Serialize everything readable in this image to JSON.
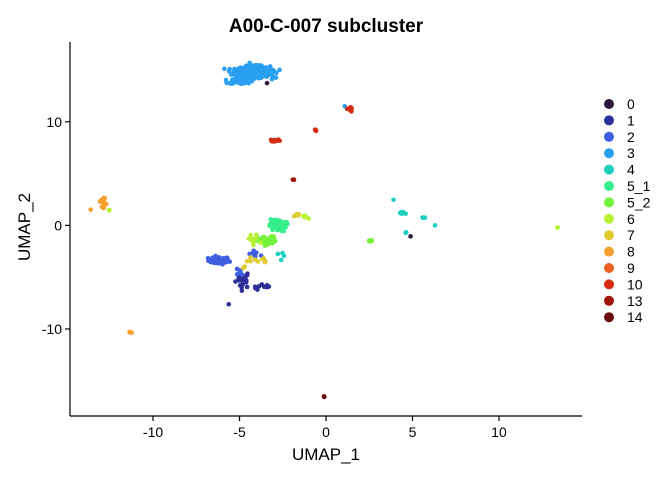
{
  "chart_data": {
    "type": "scatter",
    "title": "A00-C-007 subcluster",
    "xlabel": "UMAP_1",
    "ylabel": "UMAP_2",
    "xlim": [
      -14.8,
      14.8
    ],
    "ylim": [
      -18.4,
      17.7
    ],
    "xticks": [
      -10,
      -5,
      0,
      5,
      10
    ],
    "yticks": [
      -10,
      0,
      10
    ],
    "xtick_labels": [
      "-10",
      "-5",
      "0",
      "5",
      "10"
    ],
    "ytick_labels": [
      "-10",
      "0",
      "10"
    ],
    "grid": false,
    "legend_position": "right",
    "series": [
      {
        "name": "0",
        "color": "#2d1a3b",
        "clusters": [
          {
            "x": -3.4,
            "y": 13.7,
            "n": 1,
            "sx": 0.05,
            "sy": 0.05
          },
          {
            "x": 4.9,
            "y": -1.1,
            "n": 1,
            "sx": 0.05,
            "sy": 0.05
          }
        ]
      },
      {
        "name": "1",
        "color": "#2f2f99",
        "clusters": [
          {
            "x": -4.8,
            "y": -5.2,
            "n": 22,
            "sx": 0.35,
            "sy": 0.7
          },
          {
            "x": -3.6,
            "y": -6.0,
            "n": 10,
            "sx": 0.5,
            "sy": 0.25
          },
          {
            "x": -5.6,
            "y": -7.6,
            "n": 1,
            "sx": 0.05,
            "sy": 0.05
          }
        ]
      },
      {
        "name": "2",
        "color": "#3f5fe0",
        "clusters": [
          {
            "x": -6.2,
            "y": -3.4,
            "n": 55,
            "sx": 0.5,
            "sy": 0.3
          },
          {
            "x": -4.0,
            "y": -2.8,
            "n": 8,
            "sx": 0.4,
            "sy": 0.3
          },
          {
            "x": -5.0,
            "y": -4.6,
            "n": 6,
            "sx": 0.2,
            "sy": 0.3
          }
        ]
      },
      {
        "name": "3",
        "color": "#2a9ef0",
        "clusters": [
          {
            "x": -4.2,
            "y": 14.8,
            "n": 600,
            "sx": 0.8,
            "sy": 0.45
          },
          {
            "x": -5.0,
            "y": 13.9,
            "n": 40,
            "sx": 0.5,
            "sy": 0.2
          },
          {
            "x": 1.1,
            "y": 11.5,
            "n": 1,
            "sx": 0.05,
            "sy": 0.05
          }
        ]
      },
      {
        "name": "4",
        "color": "#1ecfc0",
        "clusters": [
          {
            "x": 4.4,
            "y": 1.2,
            "n": 6,
            "sx": 0.3,
            "sy": 0.2
          },
          {
            "x": 5.6,
            "y": 0.8,
            "n": 3,
            "sx": 0.2,
            "sy": 0.1
          },
          {
            "x": 4.6,
            "y": -0.8,
            "n": 2,
            "sx": 0.1,
            "sy": 0.1
          },
          {
            "x": 3.9,
            "y": 2.5,
            "n": 1,
            "sx": 0.05,
            "sy": 0.05
          },
          {
            "x": 6.3,
            "y": 0.0,
            "n": 1,
            "sx": 0.05,
            "sy": 0.05
          },
          {
            "x": -2.8,
            "y": -3.0,
            "n": 4,
            "sx": 0.3,
            "sy": 0.3
          }
        ]
      },
      {
        "name": "5_1",
        "color": "#35ee8c",
        "clusters": [
          {
            "x": -2.8,
            "y": 0.0,
            "n": 60,
            "sx": 0.4,
            "sy": 0.5
          }
        ]
      },
      {
        "name": "5_2",
        "color": "#74f23c",
        "clusters": [
          {
            "x": -3.4,
            "y": -1.5,
            "n": 60,
            "sx": 0.45,
            "sy": 0.35
          },
          {
            "x": 2.6,
            "y": -1.5,
            "n": 5,
            "sx": 0.15,
            "sy": 0.1
          }
        ]
      },
      {
        "name": "6",
        "color": "#b6f233",
        "clusters": [
          {
            "x": -4.2,
            "y": -1.4,
            "n": 12,
            "sx": 0.3,
            "sy": 0.5
          },
          {
            "x": -1.2,
            "y": 0.8,
            "n": 5,
            "sx": 0.3,
            "sy": 0.2
          },
          {
            "x": 13.4,
            "y": -0.2,
            "n": 2,
            "sx": 0.08,
            "sy": 0.08
          },
          {
            "x": -12.5,
            "y": 1.5,
            "n": 2,
            "sx": 0.1,
            "sy": 0.1
          }
        ]
      },
      {
        "name": "7",
        "color": "#e0cb32",
        "clusters": [
          {
            "x": -4.0,
            "y": -3.3,
            "n": 9,
            "sx": 0.6,
            "sy": 0.3
          },
          {
            "x": -1.5,
            "y": 1.0,
            "n": 4,
            "sx": 0.25,
            "sy": 0.15
          },
          {
            "x": -4.8,
            "y": -4.1,
            "n": 2,
            "sx": 0.1,
            "sy": 0.1
          }
        ]
      },
      {
        "name": "8",
        "color": "#f5a02c",
        "clusters": [
          {
            "x": -12.9,
            "y": 2.3,
            "n": 14,
            "sx": 0.15,
            "sy": 0.4
          },
          {
            "x": -11.3,
            "y": -10.3,
            "n": 3,
            "sx": 0.1,
            "sy": 0.08
          },
          {
            "x": -13.6,
            "y": 1.5,
            "n": 1,
            "sx": 0.05,
            "sy": 0.05
          }
        ]
      },
      {
        "name": "9",
        "color": "#ed5f1c",
        "clusters": [
          {
            "x": 1.4,
            "y": 11.2,
            "n": 2,
            "sx": 0.1,
            "sy": 0.1
          }
        ]
      },
      {
        "name": "10",
        "color": "#d42c10",
        "clusters": [
          {
            "x": -2.9,
            "y": 8.2,
            "n": 10,
            "sx": 0.25,
            "sy": 0.08
          },
          {
            "x": 1.4,
            "y": 11.2,
            "n": 8,
            "sx": 0.15,
            "sy": 0.2
          },
          {
            "x": -0.6,
            "y": 9.2,
            "n": 4,
            "sx": 0.1,
            "sy": 0.08
          }
        ]
      },
      {
        "name": "13",
        "color": "#9e1508",
        "clusters": [
          {
            "x": -1.9,
            "y": 4.4,
            "n": 2,
            "sx": 0.05,
            "sy": 0.05
          }
        ]
      },
      {
        "name": "14",
        "color": "#6b0a0a",
        "clusters": [
          {
            "x": -0.1,
            "y": -16.5,
            "n": 2,
            "sx": 0.05,
            "sy": 0.05
          }
        ]
      }
    ]
  }
}
